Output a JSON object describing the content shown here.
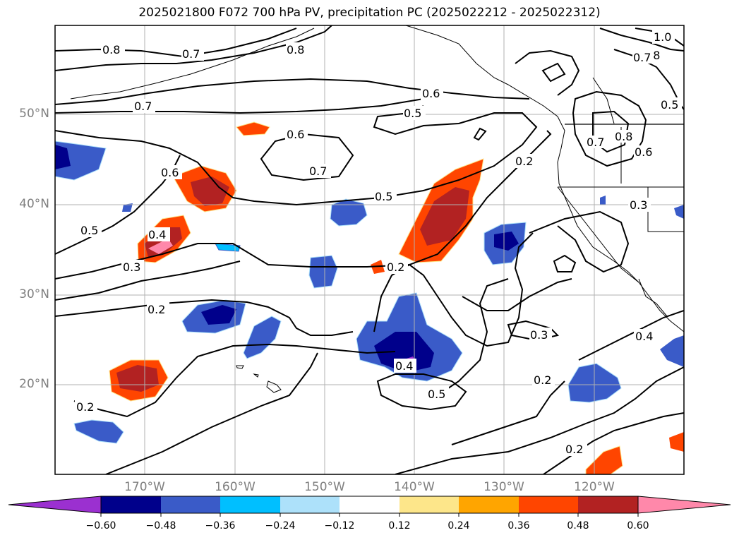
{
  "title": "2025021800 F072 700 hPa PV, precipitation PC (2025022212 - 2025022312)",
  "lat_labels": [
    "50°N",
    "40°N",
    "30°N",
    "20°N"
  ],
  "lon_labels": [
    "170°W",
    "160°W",
    "150°W",
    "140°W",
    "130°W",
    "120°W"
  ],
  "colorbar": {
    "ticks": [
      "−0.60",
      "−0.48",
      "−0.36",
      "−0.24",
      "−0.12",
      "0.12",
      "0.24",
      "0.36",
      "0.48",
      "0.60"
    ],
    "colors": [
      "#9b30d0",
      "#00008b",
      "#3a5bc8",
      "#00bfff",
      "#ade1fa",
      "#ffffff",
      "#fde68a",
      "#ffa500",
      "#ff4500",
      "#b22222",
      "#ff88aa"
    ]
  },
  "contour_labels": [
    "0.8",
    "0.7",
    "0.8",
    "0.7",
    "0.6",
    "0.5",
    "0.6",
    "0.7",
    "0.5",
    "0.6",
    "0.5",
    "0.4",
    "0.3",
    "0.2",
    "0.2",
    "0.2",
    "0.3",
    "0.2",
    "0.4",
    "0.5",
    "0.2",
    "0.4",
    "0.3",
    "0.2",
    "1.0",
    "0.8",
    "0.7",
    "0.5",
    "0.7",
    "0.8",
    "0.6"
  ],
  "colors": {
    "pos_fill": "#ff4500",
    "pos_core": "#b22222",
    "neg_fill": "#3a5bc8",
    "neg_core": "#00008b"
  }
}
